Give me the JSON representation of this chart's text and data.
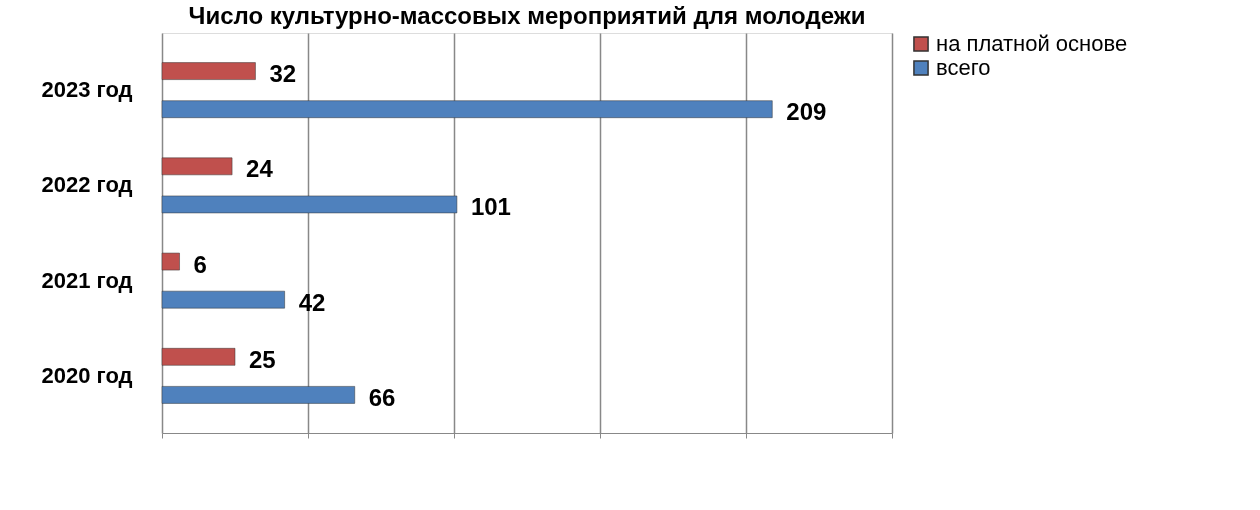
{
  "chart_data": {
    "type": "bar",
    "orientation": "horizontal",
    "title": "Число культурно-массовых мероприятий  для молодежи",
    "categories": [
      "2023 год",
      "2022 год",
      "2021 год",
      "2020 год"
    ],
    "series": [
      {
        "name": "на платной основе",
        "color": "#c0504d",
        "values": [
          32,
          24,
          6,
          25
        ]
      },
      {
        "name": "всего",
        "color": "#4f81bd",
        "values": [
          209,
          101,
          42,
          66
        ]
      }
    ],
    "xlim": [
      0,
      250
    ],
    "xticks": [
      {
        "value": 0,
        "label": null
      },
      {
        "value": 50,
        "label": null
      },
      {
        "value": 100,
        "label": null
      },
      {
        "value": 150,
        "label": null
      },
      {
        "value": 200,
        "label": null
      },
      {
        "value": 250,
        "label": null
      }
    ],
    "tick_labels": "y",
    "grid": "x",
    "legend": "right",
    "data_labels": true
  }
}
